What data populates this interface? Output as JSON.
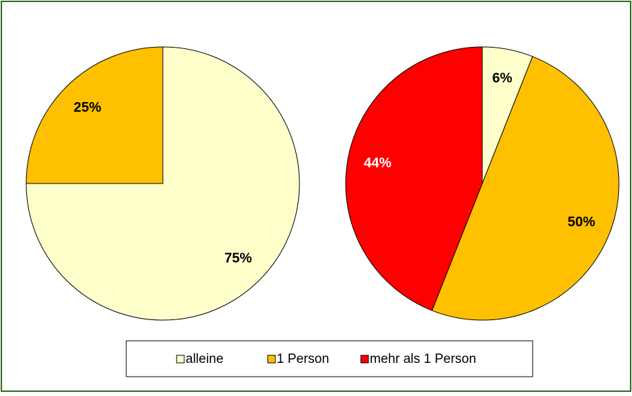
{
  "chart_data": [
    {
      "type": "pie",
      "categories": [
        "alleine",
        "1 Person"
      ],
      "values": [
        75,
        25
      ],
      "value_labels": [
        "75%",
        "25%"
      ],
      "colors": [
        "#FFFFCC",
        "#FFC000"
      ]
    },
    {
      "type": "pie",
      "categories": [
        "alleine",
        "1 Person",
        "mehr als 1 Person"
      ],
      "values": [
        6,
        50,
        44
      ],
      "value_labels": [
        "6%",
        "50%",
        "44%"
      ],
      "colors": [
        "#FFFFCC",
        "#FFC000",
        "#FF0000"
      ]
    }
  ]
}
